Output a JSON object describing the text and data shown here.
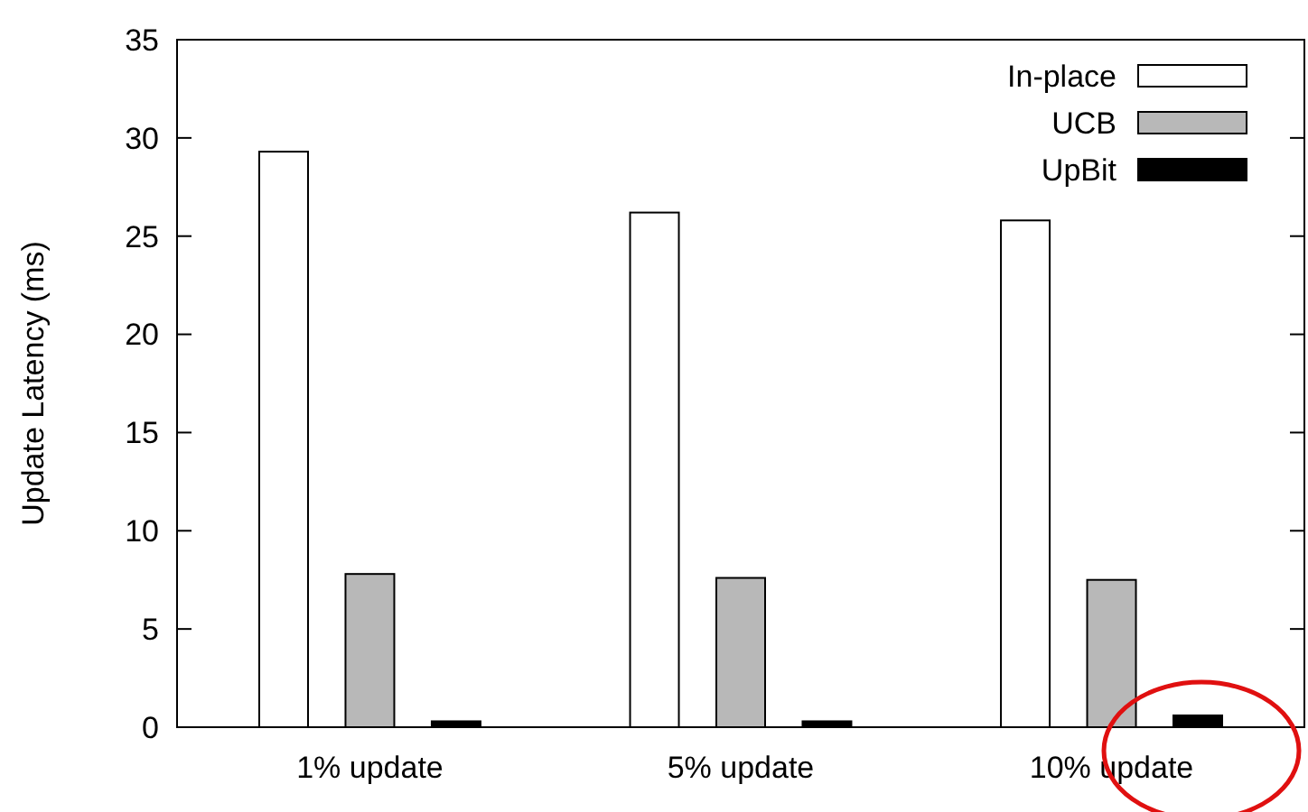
{
  "chart_data": {
    "type": "bar",
    "ylabel": "Update Latency (ms)",
    "categories": [
      "1% update",
      "5% update",
      "10% update"
    ],
    "series": [
      {
        "name": "In-place",
        "color": "#ffffff",
        "values": [
          29.3,
          26.2,
          25.8
        ]
      },
      {
        "name": "UCB",
        "color": "#b8b8b8",
        "values": [
          7.8,
          7.6,
          7.5
        ]
      },
      {
        "name": "UpBit",
        "color": "#000000",
        "values": [
          0.3,
          0.3,
          0.6
        ]
      }
    ],
    "ylim": [
      0,
      35
    ],
    "yticks": [
      0,
      5,
      10,
      15,
      20,
      25,
      30,
      35
    ],
    "grid": false,
    "legend": "top right"
  }
}
